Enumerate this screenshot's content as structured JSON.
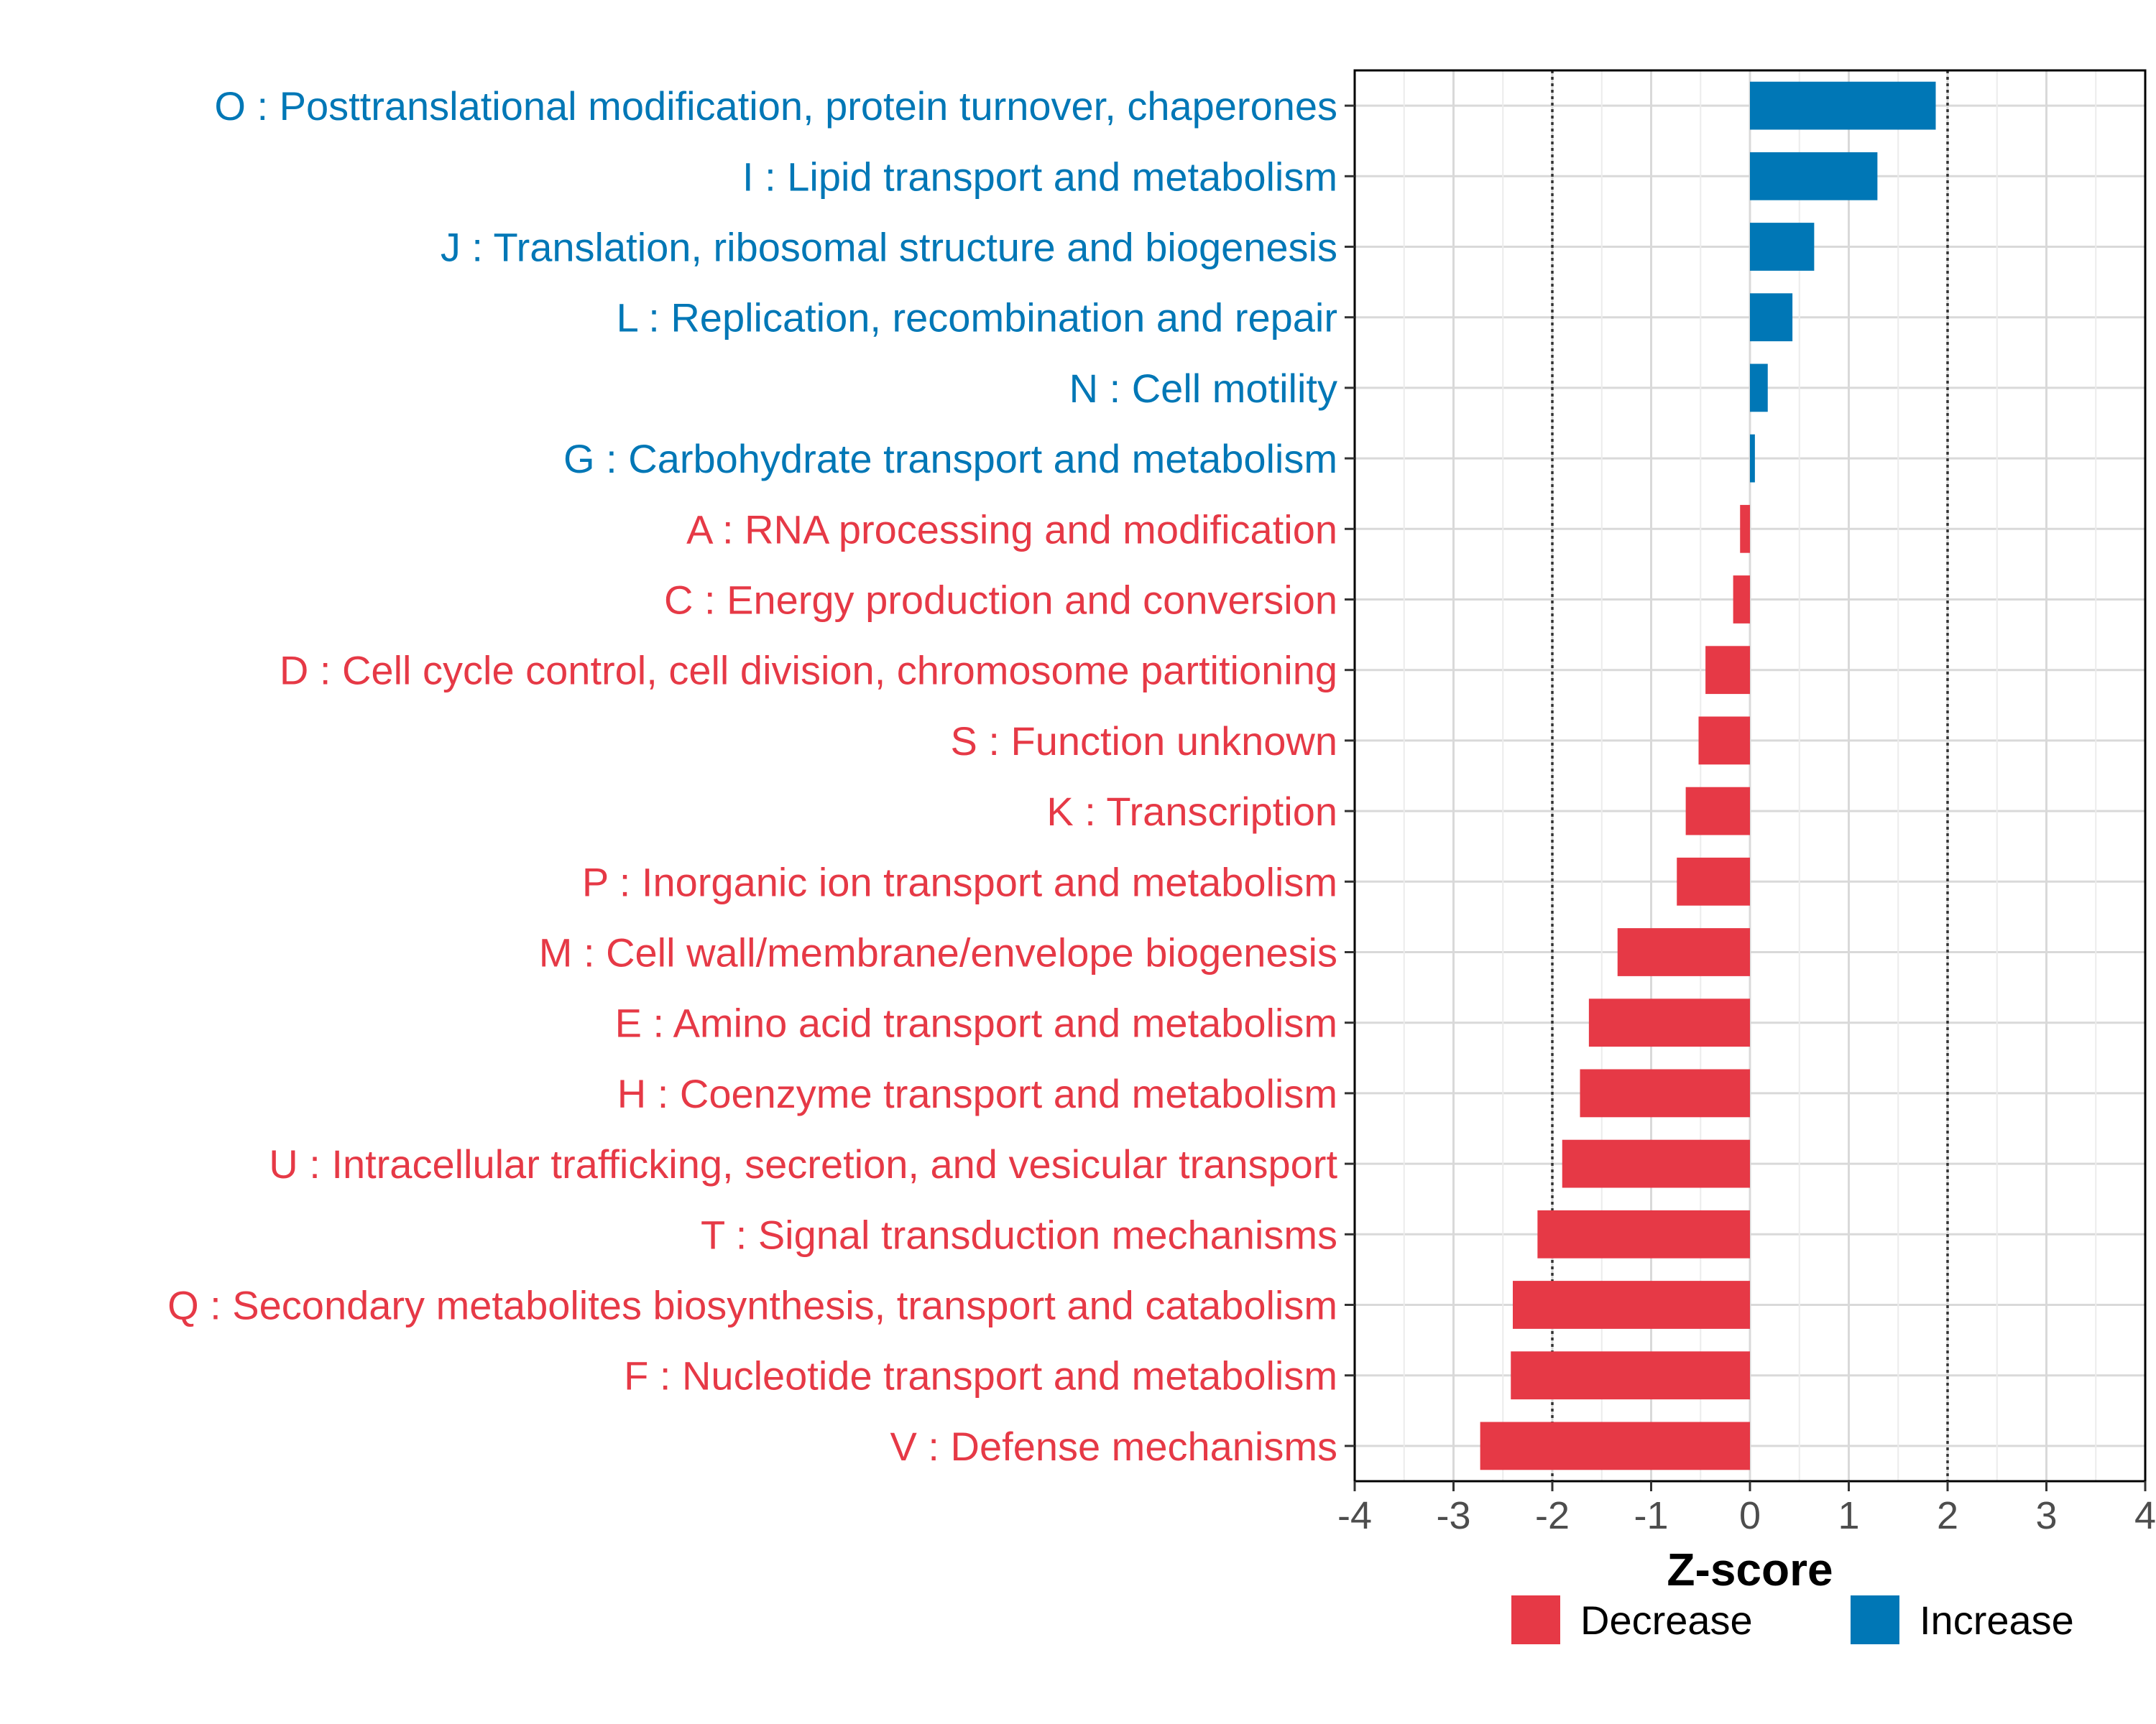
{
  "chart_data": {
    "type": "bar",
    "orientation": "horizontal",
    "xlabel": "Z-score",
    "xlim": [
      -4,
      4
    ],
    "xticks": [
      -4,
      -3,
      -2,
      -1,
      0,
      1,
      2,
      3,
      4
    ],
    "xtick_labels": [
      "-4",
      "-3",
      "-2",
      "-1",
      "0",
      "1",
      "2",
      "3",
      "4"
    ],
    "reference_lines": [
      -2,
      2
    ],
    "grid": true,
    "colors": {
      "Decrease": "#E63946",
      "Increase": "#0077B6"
    },
    "categories": [
      "O : Posttranslational modification, protein turnover, chaperones",
      "I : Lipid transport and metabolism",
      "J : Translation, ribosomal structure and biogenesis",
      "L : Replication, recombination and repair",
      "N : Cell motility",
      "G : Carbohydrate transport and metabolism",
      "A : RNA processing and modification",
      "C : Energy production and conversion",
      "D : Cell cycle control, cell division, chromosome partitioning",
      "S : Function unknown",
      "K : Transcription",
      "P : Inorganic ion transport and metabolism",
      "M : Cell wall/membrane/envelope biogenesis",
      "E : Amino acid transport and metabolism",
      "H : Coenzyme transport and metabolism",
      "U : Intracellular trafficking, secretion, and vesicular transport",
      "T : Signal transduction mechanisms",
      "Q : Secondary metabolites biosynthesis, transport and catabolism",
      "F : Nucleotide transport and metabolism",
      "V : Defense mechanisms"
    ],
    "values": [
      1.88,
      1.29,
      0.65,
      0.43,
      0.18,
      0.05,
      -0.1,
      -0.17,
      -0.45,
      -0.52,
      -0.65,
      -0.74,
      -1.34,
      -1.63,
      -1.72,
      -1.9,
      -2.15,
      -2.4,
      -2.42,
      -2.73
    ],
    "groups": [
      "Increase",
      "Increase",
      "Increase",
      "Increase",
      "Increase",
      "Increase",
      "Decrease",
      "Decrease",
      "Decrease",
      "Decrease",
      "Decrease",
      "Decrease",
      "Decrease",
      "Decrease",
      "Decrease",
      "Decrease",
      "Decrease",
      "Decrease",
      "Decrease",
      "Decrease"
    ],
    "legend": {
      "position": "bottom",
      "entries": [
        {
          "label": "Decrease",
          "color": "#E63946"
        },
        {
          "label": "Increase",
          "color": "#0077B6"
        }
      ]
    }
  }
}
